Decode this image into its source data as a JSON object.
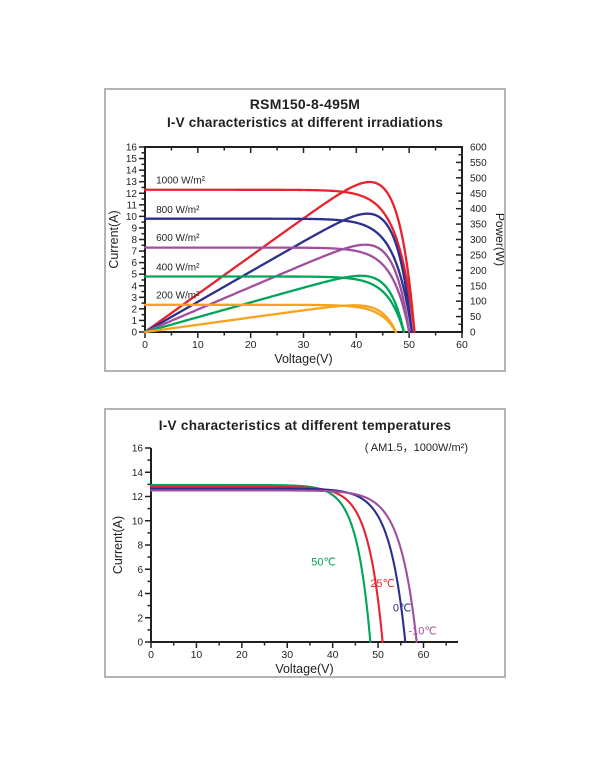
{
  "page": {
    "background": "#ffffff",
    "panel_border_color": "#b4b4b4",
    "axis_color": "#231f20"
  },
  "chart_data": [
    {
      "type": "line",
      "title": "RSM150-8-495M",
      "subtitle": "I-V characteristics at different irradiations",
      "xlabel": "Voltage(V)",
      "ylabel": "Current(A)",
      "y2label": "Power(W)",
      "xlim": [
        0,
        60
      ],
      "ylim": [
        0,
        16
      ],
      "y2lim": [
        0,
        600
      ],
      "x_ticks": [
        0,
        10,
        20,
        30,
        40,
        50,
        60
      ],
      "x_minor_step": 5,
      "y_ticks": [
        0,
        1,
        2,
        3,
        4,
        5,
        6,
        7,
        8,
        9,
        10,
        11,
        12,
        13,
        14,
        15,
        16
      ],
      "y_minor_step": 0.5,
      "y2_ticks": [
        0,
        50,
        100,
        150,
        200,
        250,
        300,
        350,
        400,
        450,
        500,
        550,
        600
      ],
      "y2_minor_step": 25,
      "frame": true,
      "grid": false,
      "legend_position": "inline-labels-left",
      "power_curves": true,
      "power_axis_scale": 37.5,
      "model_sharpness": 16,
      "series": [
        {
          "label": "1000 W/m²",
          "color": "#e8232d",
          "isc": 12.3,
          "voc": 51.0,
          "pmax": 495,
          "vmp": 43,
          "label_x": 2.1,
          "label_y": 12.85
        },
        {
          "label": "800 W/m²",
          "color": "#2b2f8d",
          "isc": 9.8,
          "voc": 50.5,
          "pmax": 398,
          "vmp": 42.5,
          "label_x": 2.1,
          "label_y": 10.3
        },
        {
          "label": "600 W/m²",
          "color": "#a04f9d",
          "isc": 7.3,
          "voc": 50.0,
          "pmax": 298,
          "vmp": 42,
          "label_x": 2.1,
          "label_y": 7.85
        },
        {
          "label": "400 W/m²",
          "color": "#00a45a",
          "isc": 4.8,
          "voc": 49.0,
          "pmax": 196,
          "vmp": 41,
          "label_x": 2.1,
          "label_y": 5.3
        },
        {
          "label": "200 W/m²",
          "color": "#f7a31c",
          "isc": 2.35,
          "voc": 47.5,
          "pmax": 94,
          "vmp": 40,
          "label_x": 2.1,
          "label_y": 2.9
        }
      ]
    },
    {
      "type": "line",
      "title": "I-V characteristics at different temperatures",
      "subtitle": "( AM1.5，1000W/m²)",
      "xlabel": "Voltage(V)",
      "ylabel": "Current(A)",
      "xlim": [
        0,
        67.6
      ],
      "ylim": [
        0,
        16
      ],
      "x_ticks": [
        0,
        10,
        20,
        30,
        40,
        50,
        60
      ],
      "x_minor_step": 5,
      "y_ticks": [
        0,
        2,
        4,
        6,
        8,
        10,
        12,
        14,
        16
      ],
      "y_minor_step": 1,
      "frame": false,
      "grid": false,
      "legend_position": "inline-labels-on-curves",
      "power_curves": false,
      "model_sharpness": 16,
      "series": [
        {
          "label": "50℃",
          "color": "#00a45a",
          "isc": 12.95,
          "voc": 48.3,
          "label_x": 38.0,
          "label_y": 6.3
        },
        {
          "label": "25℃",
          "color": "#e8232d",
          "isc": 12.8,
          "voc": 51.0,
          "label_x": 51.0,
          "label_y": 4.55
        },
        {
          "label": "0℃",
          "color": "#2b2f8d",
          "isc": 12.65,
          "voc": 56.0,
          "label_x": 55.3,
          "label_y": 2.5
        },
        {
          "label": "-10℃",
          "color": "#a04f9d",
          "isc": 12.5,
          "voc": 58.5,
          "label_x": 59.8,
          "label_y": 0.6
        }
      ]
    }
  ]
}
